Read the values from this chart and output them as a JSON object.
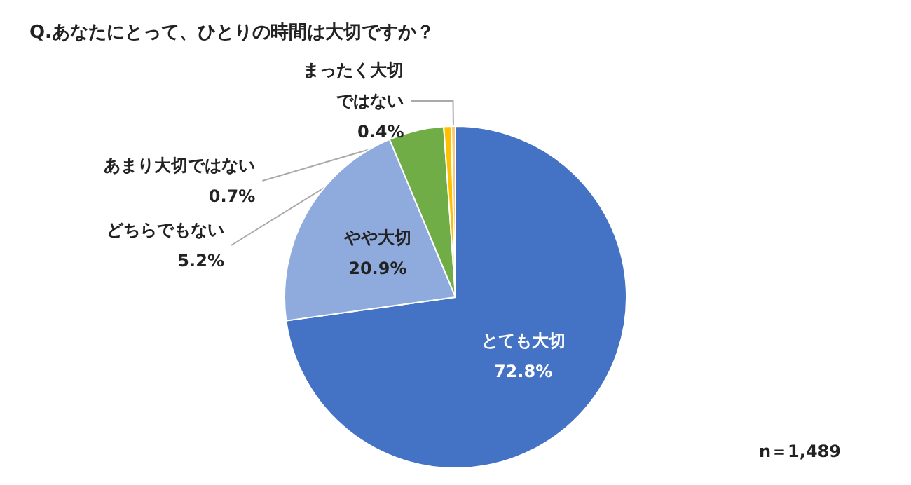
{
  "chart_data": {
    "type": "pie",
    "title": "Q.あなたにとって、ひとりの時間は大切ですか？",
    "categories": [
      "とても大切",
      "やや大切",
      "どちらでもない",
      "あまり大切ではない",
      "まったく大切ではない"
    ],
    "values": [
      72.8,
      20.9,
      5.2,
      0.7,
      0.4
    ],
    "value_labels": [
      "72.8%",
      "20.9%",
      "5.2%",
      "0.7%",
      "0.4%"
    ],
    "colors": [
      "#4472c4",
      "#8faadc",
      "#70ad47",
      "#ffc000",
      "#f8cb7a"
    ],
    "legend": false,
    "annotations": [
      "n＝1,489"
    ]
  }
}
